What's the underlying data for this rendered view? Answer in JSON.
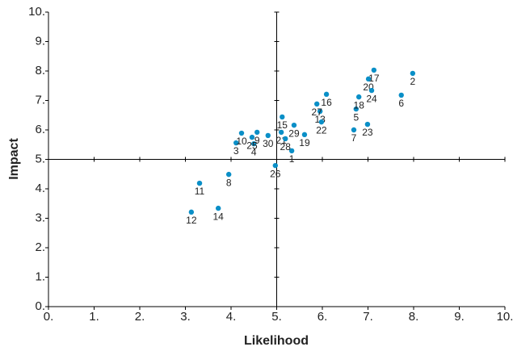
{
  "chart_data": {
    "type": "scatter",
    "x_label": "Likelihood",
    "y_label": "Impact",
    "xlim": [
      0,
      10
    ],
    "ylim": [
      0,
      10
    ],
    "xticks": [
      {
        "value": 0,
        "label": "0."
      },
      {
        "value": 1,
        "label": "1."
      },
      {
        "value": 2,
        "label": "2."
      },
      {
        "value": 3,
        "label": "3."
      },
      {
        "value": 4,
        "label": "4."
      },
      {
        "value": 5,
        "label": "5."
      },
      {
        "value": 6,
        "label": "6."
      },
      {
        "value": 7,
        "label": "7."
      },
      {
        "value": 8,
        "label": "8."
      },
      {
        "value": 9,
        "label": "9."
      },
      {
        "value": 10,
        "label": "10."
      }
    ],
    "yticks": [
      {
        "value": 0,
        "label": "0."
      },
      {
        "value": 1,
        "label": "1."
      },
      {
        "value": 2,
        "label": "2."
      },
      {
        "value": 3,
        "label": "3."
      },
      {
        "value": 4,
        "label": "4."
      },
      {
        "value": 5,
        "label": "5."
      },
      {
        "value": 6,
        "label": "6."
      },
      {
        "value": 7,
        "label": "7."
      },
      {
        "value": 8,
        "label": "8."
      },
      {
        "value": 9,
        "label": "9."
      },
      {
        "value": 10,
        "label": "10."
      }
    ],
    "divider_x": 5,
    "divider_y": 5,
    "grid": false,
    "series": [
      {
        "color": "#0a8fc7",
        "point_labels": [
          "1",
          "2",
          "3",
          "4",
          "5",
          "6",
          "7",
          "8",
          "9",
          "10",
          "11",
          "12",
          "13",
          "14",
          "15",
          "16",
          "17",
          "18",
          "19",
          "20",
          "21",
          "22",
          "23",
          "24",
          "25",
          "26",
          "27",
          "28",
          "29",
          "30"
        ],
        "x": [
          5.33,
          7.98,
          4.11,
          4.5,
          6.74,
          7.73,
          6.69,
          3.95,
          4.57,
          4.23,
          3.31,
          3.13,
          5.95,
          3.72,
          5.12,
          6.09,
          7.13,
          6.8,
          5.61,
          7.01,
          5.1,
          5.98,
          6.99,
          7.08,
          4.46,
          4.97,
          5.88,
          5.19,
          5.38,
          4.81
        ],
        "values": [
          5.29,
          7.92,
          5.56,
          5.53,
          6.71,
          7.18,
          6.0,
          4.49,
          5.92,
          5.89,
          4.19,
          3.21,
          6.63,
          3.34,
          6.44,
          7.21,
          8.03,
          7.12,
          5.84,
          7.73,
          5.92,
          6.27,
          6.19,
          7.34,
          5.75,
          4.79,
          6.88,
          5.7,
          6.16,
          5.81
        ]
      }
    ]
  }
}
